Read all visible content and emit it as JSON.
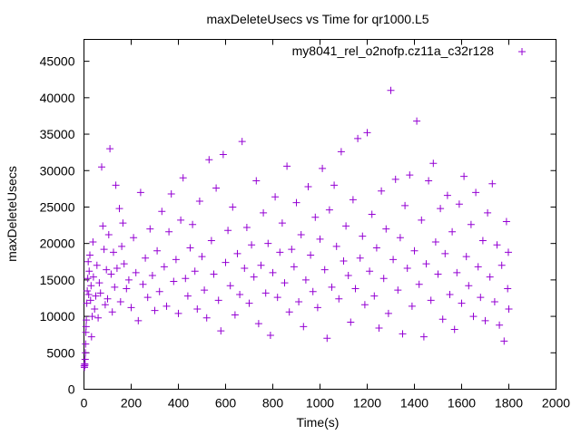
{
  "chart_data": {
    "type": "scatter",
    "title": "maxDeleteUsecs vs Time for qr1000.L5",
    "xlabel": "Time(s)",
    "ylabel": "maxDeleteUsecs",
    "xlim": [
      0,
      2000
    ],
    "ylim": [
      0,
      48000
    ],
    "xticks": [
      "0",
      "200",
      "400",
      "600",
      "800",
      "1000",
      "1200",
      "1400",
      "1600",
      "1800",
      "2000"
    ],
    "yticks": [
      "0",
      "5000",
      "10000",
      "15000",
      "20000",
      "25000",
      "30000",
      "35000",
      "40000",
      "45000"
    ],
    "grid": false,
    "legend_position": "top-right",
    "marker": "plus",
    "series": [
      {
        "name": "my8041_rel_o2nofp.cz11a_c32r128",
        "color": "#9400d3",
        "points": [
          [
            1,
            3200
          ],
          [
            2,
            3000
          ],
          [
            3,
            3500
          ],
          [
            4,
            3300
          ],
          [
            5,
            4100
          ],
          [
            6,
            5000
          ],
          [
            7,
            6200
          ],
          [
            8,
            7800
          ],
          [
            9,
            8600
          ],
          [
            10,
            9500
          ],
          [
            12,
            11800
          ],
          [
            14,
            13500
          ],
          [
            16,
            15200
          ],
          [
            18,
            17500
          ],
          [
            20,
            13000
          ],
          [
            22,
            16200
          ],
          [
            25,
            18400
          ],
          [
            28,
            12200
          ],
          [
            30,
            14200
          ],
          [
            32,
            7200
          ],
          [
            35,
            10000
          ],
          [
            38,
            20200
          ],
          [
            40,
            15400
          ],
          [
            45,
            11000
          ],
          [
            50,
            12800
          ],
          [
            55,
            17000
          ],
          [
            60,
            9800
          ],
          [
            65,
            14600
          ],
          [
            70,
            13200
          ],
          [
            75,
            30500
          ],
          [
            80,
            22400
          ],
          [
            85,
            19200
          ],
          [
            90,
            11600
          ],
          [
            95,
            16400
          ],
          [
            100,
            12400
          ],
          [
            105,
            21200
          ],
          [
            110,
            33000
          ],
          [
            115,
            15800
          ],
          [
            120,
            10600
          ],
          [
            125,
            18800
          ],
          [
            130,
            14000
          ],
          [
            135,
            28000
          ],
          [
            140,
            16600
          ],
          [
            150,
            24800
          ],
          [
            155,
            12000
          ],
          [
            160,
            19600
          ],
          [
            165,
            22800
          ],
          [
            170,
            17200
          ],
          [
            180,
            13800
          ],
          [
            190,
            15000
          ],
          [
            200,
            11200
          ],
          [
            210,
            20800
          ],
          [
            220,
            16000
          ],
          [
            230,
            9400
          ],
          [
            240,
            27000
          ],
          [
            250,
            14400
          ],
          [
            260,
            18000
          ],
          [
            270,
            12600
          ],
          [
            280,
            22000
          ],
          [
            290,
            15600
          ],
          [
            300,
            10800
          ],
          [
            310,
            19000
          ],
          [
            320,
            13400
          ],
          [
            330,
            24400
          ],
          [
            340,
            16800
          ],
          [
            350,
            11400
          ],
          [
            360,
            21600
          ],
          [
            370,
            26800
          ],
          [
            380,
            14800
          ],
          [
            390,
            17800
          ],
          [
            400,
            10400
          ],
          [
            410,
            23200
          ],
          [
            420,
            29000
          ],
          [
            430,
            15200
          ],
          [
            440,
            12800
          ],
          [
            450,
            19400
          ],
          [
            460,
            22600
          ],
          [
            470,
            16200
          ],
          [
            480,
            11000
          ],
          [
            490,
            25800
          ],
          [
            500,
            18200
          ],
          [
            510,
            13600
          ],
          [
            520,
            9800
          ],
          [
            530,
            31500
          ],
          [
            540,
            20400
          ],
          [
            550,
            15800
          ],
          [
            560,
            27600
          ],
          [
            570,
            12200
          ],
          [
            580,
            8000
          ],
          [
            590,
            32200
          ],
          [
            600,
            17400
          ],
          [
            610,
            21800
          ],
          [
            620,
            14200
          ],
          [
            630,
            25000
          ],
          [
            640,
            10200
          ],
          [
            650,
            18600
          ],
          [
            660,
            13000
          ],
          [
            670,
            34000
          ],
          [
            680,
            16600
          ],
          [
            690,
            22200
          ],
          [
            700,
            11800
          ],
          [
            710,
            19800
          ],
          [
            720,
            15400
          ],
          [
            730,
            28600
          ],
          [
            740,
            9000
          ],
          [
            750,
            17000
          ],
          [
            760,
            24200
          ],
          [
            770,
            13200
          ],
          [
            780,
            20000
          ],
          [
            790,
            7400
          ],
          [
            800,
            16000
          ],
          [
            810,
            26400
          ],
          [
            820,
            12600
          ],
          [
            830,
            18800
          ],
          [
            840,
            22800
          ],
          [
            850,
            14600
          ],
          [
            860,
            30600
          ],
          [
            870,
            10600
          ],
          [
            880,
            19200
          ],
          [
            890,
            16800
          ],
          [
            900,
            25600
          ],
          [
            910,
            12000
          ],
          [
            920,
            21200
          ],
          [
            930,
            8600
          ],
          [
            940,
            15000
          ],
          [
            950,
            27800
          ],
          [
            960,
            18400
          ],
          [
            970,
            13400
          ],
          [
            980,
            23600
          ],
          [
            990,
            11200
          ],
          [
            1000,
            20600
          ],
          [
            1010,
            30300
          ],
          [
            1020,
            16400
          ],
          [
            1030,
            7000
          ],
          [
            1040,
            24600
          ],
          [
            1050,
            14000
          ],
          [
            1060,
            28000
          ],
          [
            1070,
            19600
          ],
          [
            1080,
            12400
          ],
          [
            1090,
            32600
          ],
          [
            1100,
            17600
          ],
          [
            1110,
            22400
          ],
          [
            1120,
            15600
          ],
          [
            1130,
            9200
          ],
          [
            1140,
            26000
          ],
          [
            1150,
            13800
          ],
          [
            1160,
            34400
          ],
          [
            1170,
            18000
          ],
          [
            1180,
            21000
          ],
          [
            1190,
            11600
          ],
          [
            1200,
            35200
          ],
          [
            1210,
            16200
          ],
          [
            1220,
            24000
          ],
          [
            1230,
            12800
          ],
          [
            1240,
            19400
          ],
          [
            1250,
            8400
          ],
          [
            1260,
            27200
          ],
          [
            1270,
            15200
          ],
          [
            1280,
            22000
          ],
          [
            1290,
            10400
          ],
          [
            1300,
            41000
          ],
          [
            1310,
            17800
          ],
          [
            1320,
            28800
          ],
          [
            1330,
            13600
          ],
          [
            1340,
            20800
          ],
          [
            1350,
            7600
          ],
          [
            1360,
            25200
          ],
          [
            1370,
            16600
          ],
          [
            1380,
            29400
          ],
          [
            1390,
            11400
          ],
          [
            1400,
            19000
          ],
          [
            1410,
            36800
          ],
          [
            1420,
            14400
          ],
          [
            1430,
            23200
          ],
          [
            1440,
            7200
          ],
          [
            1450,
            17200
          ],
          [
            1460,
            28600
          ],
          [
            1470,
            12200
          ],
          [
            1480,
            31000
          ],
          [
            1490,
            20200
          ],
          [
            1500,
            15800
          ],
          [
            1510,
            24800
          ],
          [
            1520,
            9600
          ],
          [
            1530,
            18600
          ],
          [
            1540,
            26600
          ],
          [
            1550,
            13000
          ],
          [
            1560,
            21600
          ],
          [
            1570,
            8200
          ],
          [
            1580,
            16000
          ],
          [
            1590,
            25400
          ],
          [
            1600,
            11800
          ],
          [
            1610,
            29200
          ],
          [
            1620,
            18200
          ],
          [
            1630,
            14200
          ],
          [
            1640,
            22600
          ],
          [
            1650,
            10000
          ],
          [
            1660,
            27000
          ],
          [
            1670,
            16800
          ],
          [
            1680,
            12600
          ],
          [
            1690,
            20400
          ],
          [
            1700,
            9400
          ],
          [
            1710,
            24200
          ],
          [
            1720,
            15400
          ],
          [
            1730,
            28200
          ],
          [
            1740,
            12000
          ],
          [
            1750,
            19800
          ],
          [
            1760,
            8800
          ],
          [
            1770,
            17000
          ],
          [
            1780,
            6600
          ],
          [
            1790,
            23000
          ],
          [
            1795,
            13800
          ],
          [
            1798,
            18800
          ],
          [
            1800,
            11000
          ]
        ]
      }
    ]
  }
}
